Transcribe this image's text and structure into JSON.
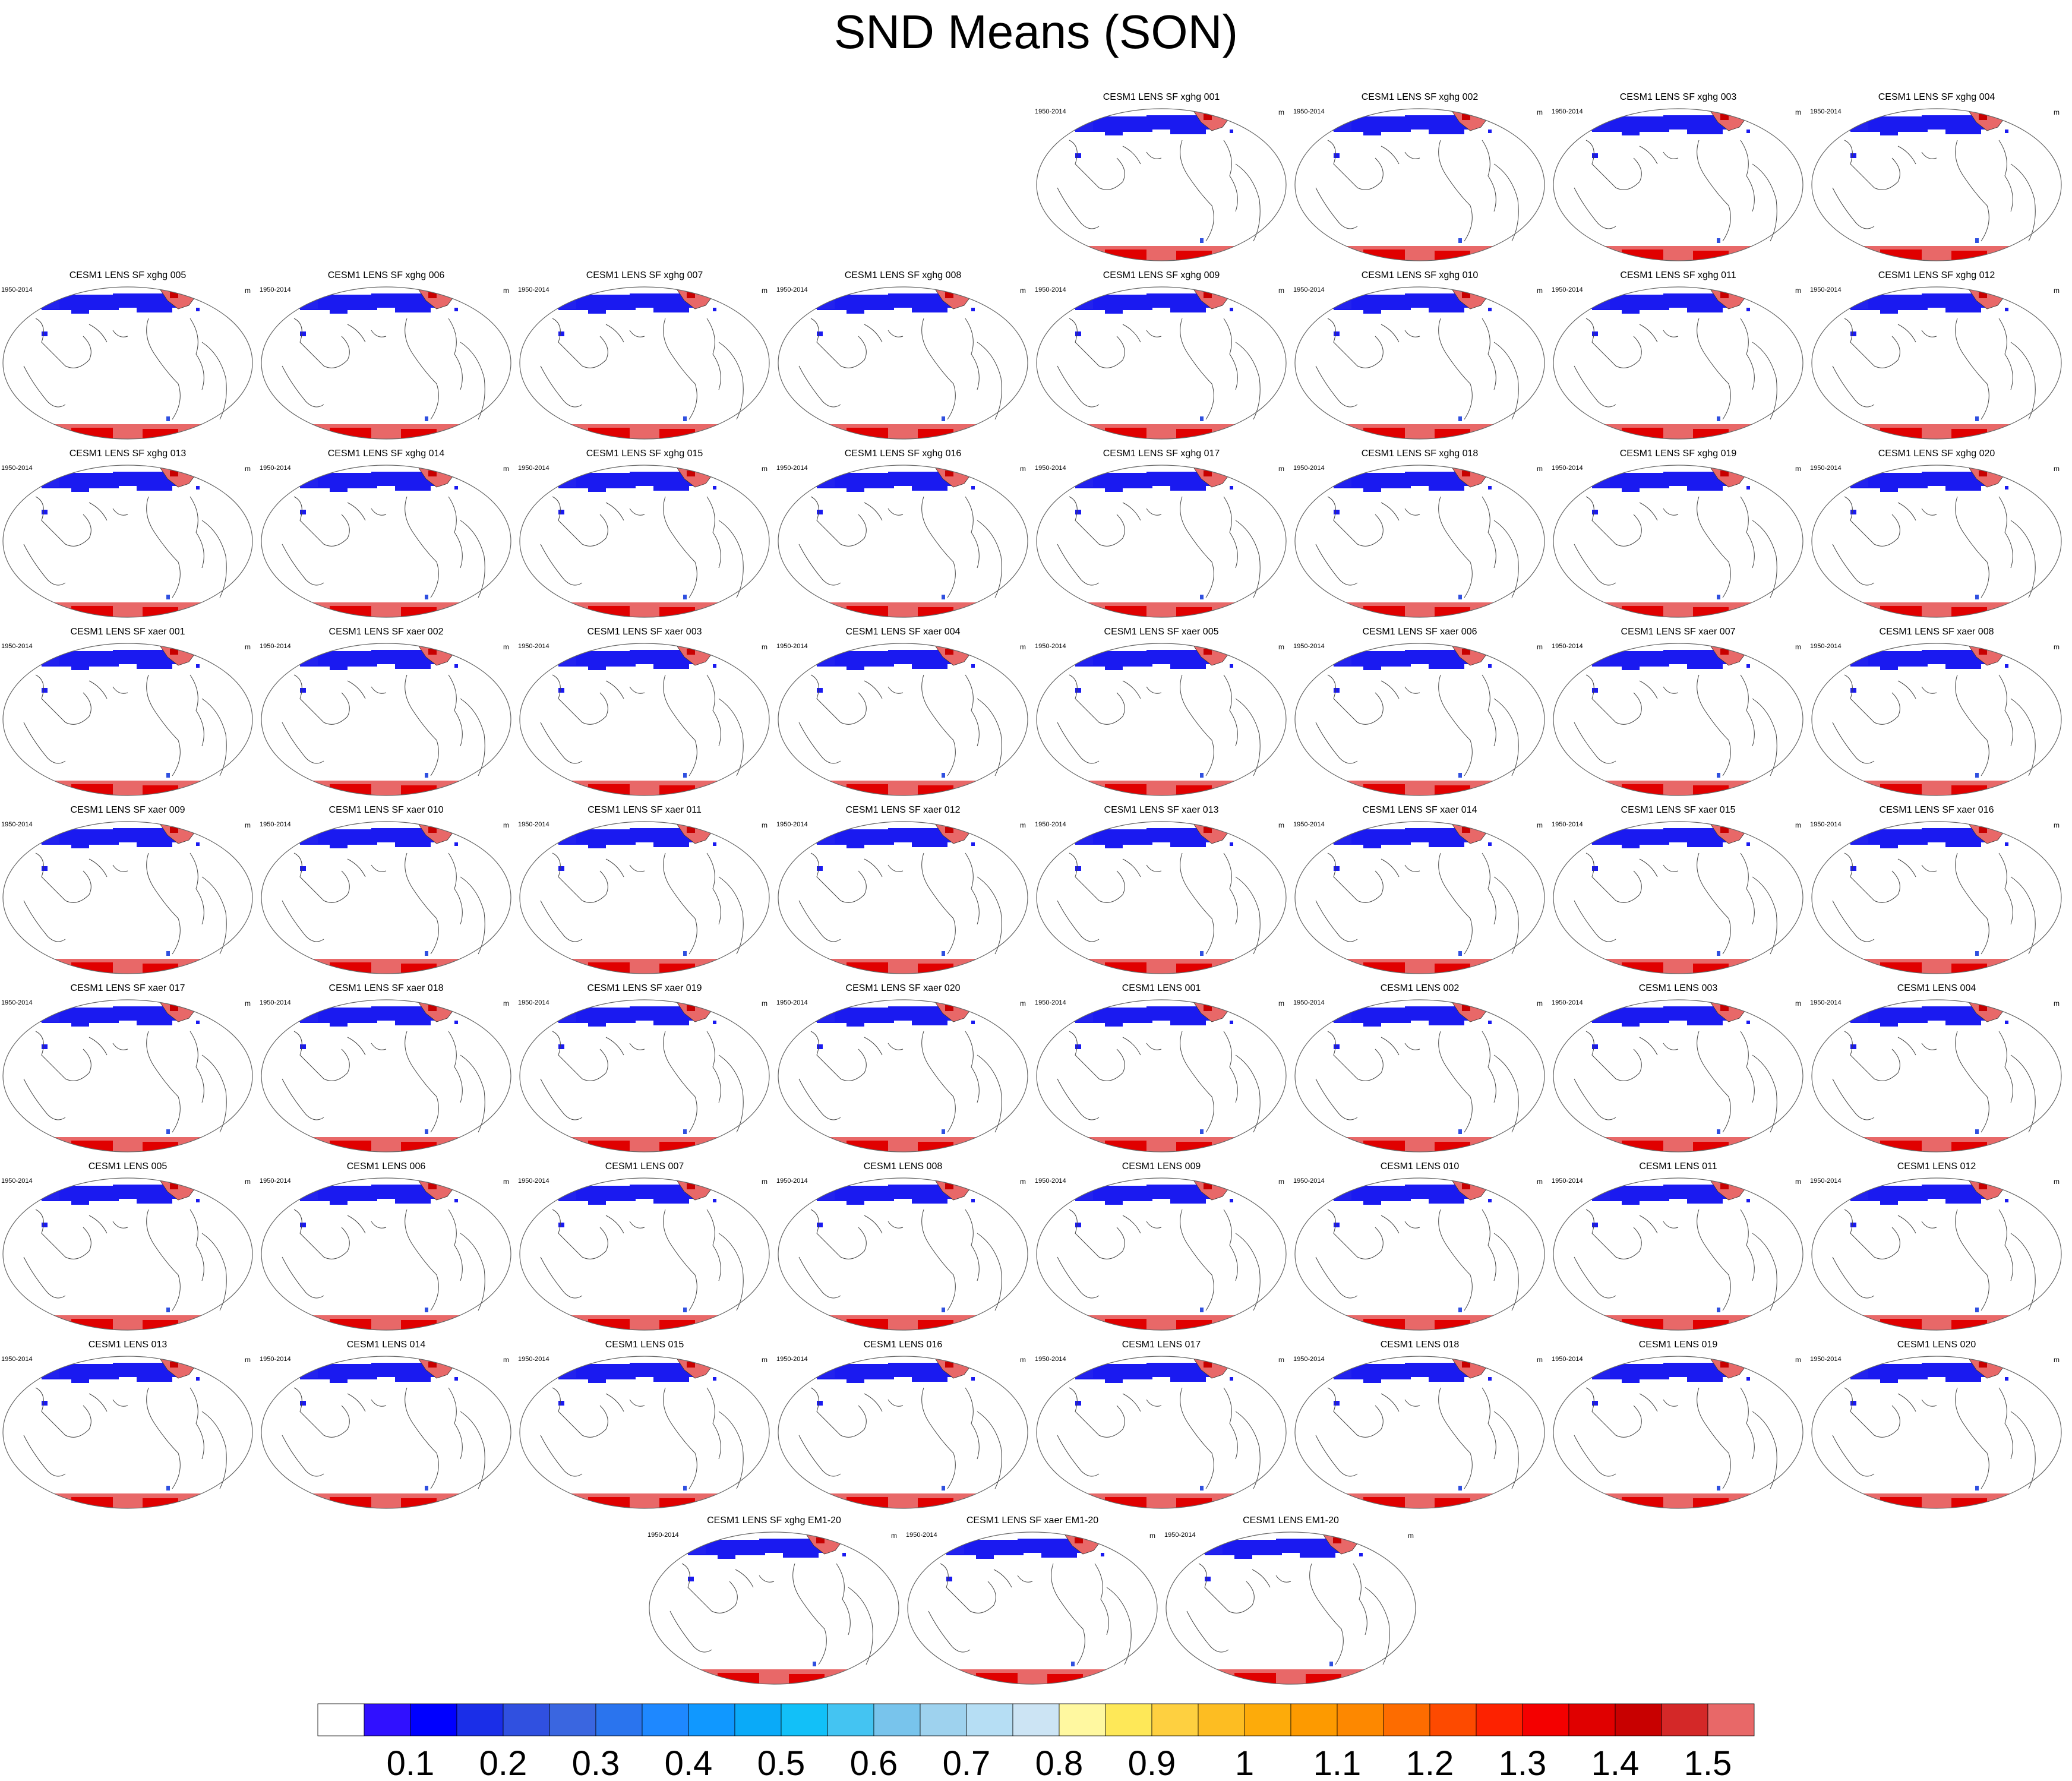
{
  "title": "SND Means (SON)",
  "chart_data": {
    "type": "heatmap",
    "title": "SND Means (SON)",
    "units": "m",
    "period": "1950-2014",
    "panels": [
      "CESM1 LENS SF xghg 001",
      "CESM1 LENS SF xghg 002",
      "CESM1 LENS SF xghg 003",
      "CESM1 LENS SF xghg 004",
      "CESM1 LENS SF xghg 005",
      "CESM1 LENS SF xghg 006",
      "CESM1 LENS SF xghg 007",
      "CESM1 LENS SF xghg 008",
      "CESM1 LENS SF xghg 009",
      "CESM1 LENS SF xghg 010",
      "CESM1 LENS SF xghg 011",
      "CESM1 LENS SF xghg 012",
      "CESM1 LENS SF xghg 013",
      "CESM1 LENS SF xghg 014",
      "CESM1 LENS SF xghg 015",
      "CESM1 LENS SF xghg 016",
      "CESM1 LENS SF xghg 017",
      "CESM1 LENS SF xghg 018",
      "CESM1 LENS SF xghg 019",
      "CESM1 LENS SF xghg 020",
      "CESM1 LENS SF xaer 001",
      "CESM1 LENS SF xaer 002",
      "CESM1 LENS SF xaer 003",
      "CESM1 LENS SF xaer 004",
      "CESM1 LENS SF xaer 005",
      "CESM1 LENS SF xaer 006",
      "CESM1 LENS SF xaer 007",
      "CESM1 LENS SF xaer 008",
      "CESM1 LENS SF xaer 009",
      "CESM1 LENS SF xaer 010",
      "CESM1 LENS SF xaer 011",
      "CESM1 LENS SF xaer 012",
      "CESM1 LENS SF xaer 013",
      "CESM1 LENS SF xaer 014",
      "CESM1 LENS SF xaer 015",
      "CESM1 LENS SF xaer 016",
      "CESM1 LENS SF xaer 017",
      "CESM1 LENS SF xaer 018",
      "CESM1 LENS SF xaer 019",
      "CESM1 LENS SF xaer 020",
      "CESM1 LENS 001",
      "CESM1 LENS 002",
      "CESM1 LENS 003",
      "CESM1 LENS 004",
      "CESM1 LENS 005",
      "CESM1 LENS 006",
      "CESM1 LENS 007",
      "CESM1 LENS 008",
      "CESM1 LENS 009",
      "CESM1 LENS 010",
      "CESM1 LENS 011",
      "CESM1 LENS 012",
      "CESM1 LENS 013",
      "CESM1 LENS 014",
      "CESM1 LENS 015",
      "CESM1 LENS 016",
      "CESM1 LENS 017",
      "CESM1 LENS 018",
      "CESM1 LENS 019",
      "CESM1 LENS 020",
      "CESM1 LENS SF xghg EM1-20",
      "CESM1 LENS SF xaer EM1-20",
      "CESM1 LENS EM1-20"
    ],
    "colorbar": {
      "levels": [
        "0.1",
        "0.2",
        "0.3",
        "0.4",
        "0.5",
        "0.6",
        "0.7",
        "0.8",
        "0.9",
        "1",
        "1.1",
        "1.2",
        "1.3",
        "1.4",
        "1.5"
      ],
      "colors": [
        "#ffffff",
        "#3010ff",
        "#0000ff",
        "#1a2ee8",
        "#3050e0",
        "#3a66e0",
        "#2a74ee",
        "#1e88ff",
        "#1098ff",
        "#0aaaf8",
        "#12c0f8",
        "#44c4f2",
        "#78c4ec",
        "#9ed2ee",
        "#b6def4",
        "#cce4f4",
        "#fff8a0",
        "#fee858",
        "#fed040",
        "#fdbd22",
        "#fdab0a",
        "#fd9a00",
        "#fd8800",
        "#fd6c00",
        "#fd4a00",
        "#fd2200",
        "#f40000",
        "#e00000",
        "#c80000",
        "#d42828",
        "#e86868"
      ]
    }
  }
}
